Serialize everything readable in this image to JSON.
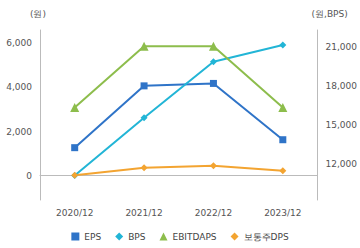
{
  "chart_data": {
    "type": "line",
    "y_label": "(원)",
    "y2_label": "(원,BPS)",
    "categories": [
      "2020/12",
      "2021/12",
      "2022/12",
      "2023/12"
    ],
    "series": [
      {
        "name": "EPS",
        "color": "#2f74c8",
        "marker": "square",
        "values": [
          1270,
          4070,
          4180,
          1630
        ]
      },
      {
        "name": "BPS",
        "color": "#22b5d6",
        "marker": "diamond",
        "axis": "y2",
        "values": [
          11080,
          15540,
          19850,
          21150
        ]
      },
      {
        "name": "EBITDAPS",
        "color": "#8dbd4c",
        "marker": "triangle",
        "values": [
          3090,
          5860,
          5860,
          3090
        ]
      },
      {
        "name": "보통주DPS",
        "color": "#f3a431",
        "marker": "diamond",
        "values": [
          20,
          360,
          450,
          230
        ]
      }
    ],
    "ylim": [
      -1100,
      6600
    ],
    "yticks": [
      0,
      {
        "value": 2000,
        "label": "2,000"
      },
      {
        "value": 4000,
        "label": "4,000"
      },
      {
        "value": 6000,
        "label": "6,000"
      }
    ],
    "y2lim": [
      9200,
      22300
    ],
    "y2ticks": [
      {
        "value": 12000,
        "label": "12,000"
      },
      {
        "value": 15000,
        "label": "15,000"
      },
      {
        "value": 18000,
        "label": "18,000"
      },
      {
        "value": 21000,
        "label": "21,000"
      }
    ],
    "grid": false,
    "legend": "bottom"
  }
}
